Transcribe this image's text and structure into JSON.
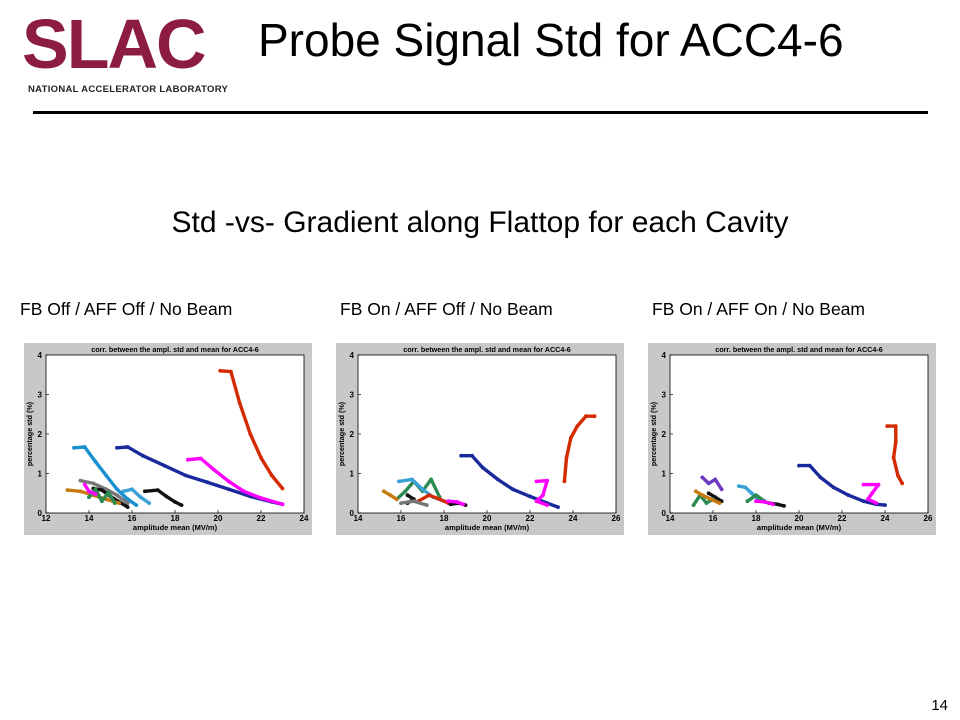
{
  "header": {
    "logo": {
      "word": "SLAC",
      "sub": "NATIONAL ACCELERATOR LABORATORY"
    },
    "title": "Probe Signal Std for ACC4-6"
  },
  "subtitle": "Std -vs- Gradient along Flattop for each Cavity",
  "page_number": "14",
  "panels": [
    {
      "label": "FB Off / AFF Off / No Beam"
    },
    {
      "label": "FB On / AFF Off / No Beam"
    },
    {
      "label": "FB On / AFF On / No Beam"
    }
  ],
  "chart_data": [
    {
      "type": "scatter",
      "title": "corr. between the ampl. std and mean for ACC4-6",
      "xlabel": "amplitude mean (MV/m)",
      "ylabel": "percentage std (%)",
      "xlim": [
        12,
        24
      ],
      "ylim": [
        0,
        4
      ],
      "xticks": [
        12,
        14,
        16,
        18,
        20,
        22,
        24
      ],
      "yticks": [
        0,
        1,
        2,
        3,
        4
      ],
      "grid": false,
      "series": [
        {
          "color": "#d42a00",
          "points": [
            [
              20.1,
              3.6
            ],
            [
              20.6,
              3.58
            ],
            [
              21.0,
              2.8
            ],
            [
              21.5,
              2.0
            ],
            [
              22.0,
              1.4
            ],
            [
              22.5,
              0.95
            ],
            [
              23.0,
              0.62
            ]
          ]
        },
        {
          "color": "#1a2a9c",
          "points": [
            [
              15.3,
              1.65
            ],
            [
              15.8,
              1.67
            ],
            [
              16.5,
              1.45
            ],
            [
              17.5,
              1.2
            ],
            [
              18.5,
              0.95
            ],
            [
              19.5,
              0.78
            ],
            [
              20.5,
              0.6
            ],
            [
              21.5,
              0.42
            ],
            [
              22.5,
              0.28
            ],
            [
              23.0,
              0.22
            ]
          ]
        },
        {
          "color": "#ff00ff",
          "points": [
            [
              18.6,
              1.35
            ],
            [
              19.2,
              1.38
            ],
            [
              19.8,
              1.1
            ],
            [
              20.5,
              0.8
            ],
            [
              21.2,
              0.55
            ],
            [
              22.0,
              0.38
            ],
            [
              23.0,
              0.22
            ]
          ]
        },
        {
          "color": "#1a8fd0",
          "points": [
            [
              13.3,
              1.65
            ],
            [
              13.8,
              1.67
            ],
            [
              14.3,
              1.3
            ],
            [
              14.8,
              0.95
            ],
            [
              15.3,
              0.6
            ],
            [
              15.8,
              0.35
            ],
            [
              16.2,
              0.2
            ]
          ]
        },
        {
          "color": "#777777",
          "points": [
            [
              13.6,
              0.82
            ],
            [
              14.2,
              0.75
            ],
            [
              14.8,
              0.6
            ],
            [
              15.3,
              0.45
            ],
            [
              15.8,
              0.25
            ]
          ]
        },
        {
          "color": "#111111",
          "points": [
            [
              14.2,
              0.62
            ],
            [
              14.6,
              0.58
            ],
            [
              15.0,
              0.42
            ],
            [
              15.4,
              0.28
            ],
            [
              15.8,
              0.15
            ]
          ]
        },
        {
          "color": "#111111",
          "points": [
            [
              16.6,
              0.55
            ],
            [
              17.2,
              0.58
            ],
            [
              17.6,
              0.42
            ],
            [
              18.0,
              0.28
            ],
            [
              18.3,
              0.2
            ]
          ]
        },
        {
          "color": "#c87a10",
          "points": [
            [
              13.0,
              0.58
            ],
            [
              13.6,
              0.55
            ],
            [
              14.2,
              0.45
            ],
            [
              14.8,
              0.35
            ],
            [
              15.4,
              0.25
            ]
          ]
        },
        {
          "color": "#2a8a50",
          "points": [
            [
              14.0,
              0.4
            ],
            [
              14.3,
              0.6
            ],
            [
              14.6,
              0.3
            ],
            [
              14.9,
              0.52
            ],
            [
              15.2,
              0.25
            ]
          ]
        },
        {
          "color": "#3aa0d8",
          "points": [
            [
              15.6,
              0.55
            ],
            [
              16.0,
              0.6
            ],
            [
              16.4,
              0.4
            ],
            [
              16.8,
              0.25
            ]
          ]
        },
        {
          "color": "#ff00ff",
          "points": [
            [
              13.8,
              0.72
            ],
            [
              14.0,
              0.55
            ],
            [
              14.3,
              0.48
            ]
          ]
        }
      ]
    },
    {
      "type": "scatter",
      "title": "corr. between the ampl. std and mean for ACC4-6",
      "xlabel": "amplitude mean (MV/m)",
      "ylabel": "percentage std (%)",
      "xlim": [
        14,
        26
      ],
      "ylim": [
        0,
        4
      ],
      "xticks": [
        14,
        16,
        18,
        20,
        22,
        24,
        26
      ],
      "yticks": [
        0,
        1,
        2,
        3,
        4
      ],
      "grid": false,
      "series": [
        {
          "color": "#d42a00",
          "points": [
            [
              23.6,
              0.8
            ],
            [
              23.7,
              1.4
            ],
            [
              23.9,
              1.9
            ],
            [
              24.2,
              2.2
            ],
            [
              24.6,
              2.45
            ],
            [
              25.0,
              2.45
            ]
          ]
        },
        {
          "color": "#1a2a9c",
          "points": [
            [
              18.8,
              1.45
            ],
            [
              19.3,
              1.45
            ],
            [
              19.8,
              1.15
            ],
            [
              20.5,
              0.85
            ],
            [
              21.2,
              0.6
            ],
            [
              22.0,
              0.42
            ],
            [
              22.8,
              0.25
            ],
            [
              23.3,
              0.15
            ]
          ]
        },
        {
          "color": "#ff00ff",
          "points": [
            [
              22.3,
              0.8
            ],
            [
              22.8,
              0.82
            ],
            [
              22.6,
              0.45
            ],
            [
              22.3,
              0.3
            ],
            [
              22.8,
              0.2
            ]
          ]
        },
        {
          "color": "#111111",
          "points": [
            [
              16.3,
              0.45
            ],
            [
              16.6,
              0.35
            ],
            [
              16.3,
              0.25
            ]
          ]
        },
        {
          "color": "#2a8a50",
          "points": [
            [
              15.8,
              0.35
            ],
            [
              16.2,
              0.55
            ],
            [
              16.6,
              0.8
            ],
            [
              17.0,
              0.55
            ],
            [
              17.4,
              0.85
            ],
            [
              17.8,
              0.4
            ]
          ]
        },
        {
          "color": "#3aa0d8",
          "points": [
            [
              15.9,
              0.8
            ],
            [
              16.5,
              0.85
            ],
            [
              17.0,
              0.6
            ],
            [
              17.5,
              0.4
            ],
            [
              18.0,
              0.3
            ]
          ]
        },
        {
          "color": "#d42a00",
          "points": [
            [
              16.8,
              0.3
            ],
            [
              17.3,
              0.45
            ],
            [
              17.8,
              0.35
            ],
            [
              18.2,
              0.25
            ]
          ]
        },
        {
          "color": "#777777",
          "points": [
            [
              16.0,
              0.25
            ],
            [
              16.6,
              0.3
            ],
            [
              17.2,
              0.2
            ]
          ]
        },
        {
          "color": "#111111",
          "points": [
            [
              18.3,
              0.22
            ],
            [
              18.7,
              0.25
            ],
            [
              19.0,
              0.2
            ]
          ]
        },
        {
          "color": "#ff00ff",
          "points": [
            [
              18.2,
              0.3
            ],
            [
              18.6,
              0.28
            ],
            [
              18.9,
              0.22
            ]
          ]
        },
        {
          "color": "#c87a10",
          "points": [
            [
              15.2,
              0.55
            ],
            [
              15.5,
              0.45
            ],
            [
              15.8,
              0.35
            ]
          ]
        }
      ]
    },
    {
      "type": "scatter",
      "title": "corr. between the ampl. std and mean for ACC4-6",
      "xlabel": "amplitude mean (MV/m)",
      "ylabel": "percentage std (%)",
      "xlim": [
        14,
        26
      ],
      "ylim": [
        0,
        4
      ],
      "xticks": [
        14,
        16,
        18,
        20,
        22,
        24,
        26
      ],
      "yticks": [
        0,
        1,
        2,
        3,
        4
      ],
      "grid": false,
      "series": [
        {
          "color": "#d42a00",
          "points": [
            [
              24.1,
              2.2
            ],
            [
              24.5,
              2.2
            ],
            [
              24.5,
              1.8
            ],
            [
              24.4,
              1.4
            ],
            [
              24.6,
              0.95
            ],
            [
              24.8,
              0.75
            ]
          ]
        },
        {
          "color": "#1a2a9c",
          "points": [
            [
              20.0,
              1.2
            ],
            [
              20.5,
              1.2
            ],
            [
              21.0,
              0.9
            ],
            [
              21.6,
              0.65
            ],
            [
              22.3,
              0.45
            ],
            [
              23.0,
              0.3
            ],
            [
              23.6,
              0.22
            ],
            [
              24.0,
              0.2
            ]
          ]
        },
        {
          "color": "#ff00ff",
          "points": [
            [
              23.0,
              0.72
            ],
            [
              23.7,
              0.72
            ],
            [
              23.4,
              0.5
            ],
            [
              23.2,
              0.35
            ],
            [
              23.6,
              0.25
            ]
          ]
        },
        {
          "color": "#6a3ac0",
          "points": [
            [
              15.5,
              0.9
            ],
            [
              15.8,
              0.75
            ],
            [
              16.1,
              0.85
            ],
            [
              16.4,
              0.6
            ]
          ]
        },
        {
          "color": "#3aa0d8",
          "points": [
            [
              17.2,
              0.68
            ],
            [
              17.5,
              0.65
            ],
            [
              17.8,
              0.5
            ],
            [
              18.1,
              0.35
            ]
          ]
        },
        {
          "color": "#111111",
          "points": [
            [
              15.8,
              0.5
            ],
            [
              16.1,
              0.4
            ],
            [
              16.4,
              0.3
            ]
          ]
        },
        {
          "color": "#111111",
          "points": [
            [
              18.6,
              0.25
            ],
            [
              19.0,
              0.22
            ],
            [
              19.3,
              0.18
            ]
          ]
        },
        {
          "color": "#2a8a50",
          "points": [
            [
              15.1,
              0.2
            ],
            [
              15.4,
              0.45
            ],
            [
              15.7,
              0.25
            ],
            [
              16.0,
              0.35
            ]
          ]
        },
        {
          "color": "#c87a10",
          "points": [
            [
              15.2,
              0.55
            ],
            [
              15.5,
              0.45
            ],
            [
              15.9,
              0.35
            ],
            [
              16.3,
              0.25
            ]
          ]
        },
        {
          "color": "#2a8a50",
          "points": [
            [
              17.6,
              0.3
            ],
            [
              18.0,
              0.45
            ],
            [
              18.4,
              0.3
            ]
          ]
        },
        {
          "color": "#ff00ff",
          "points": [
            [
              18.0,
              0.3
            ],
            [
              18.4,
              0.28
            ],
            [
              18.8,
              0.22
            ]
          ]
        }
      ]
    }
  ]
}
